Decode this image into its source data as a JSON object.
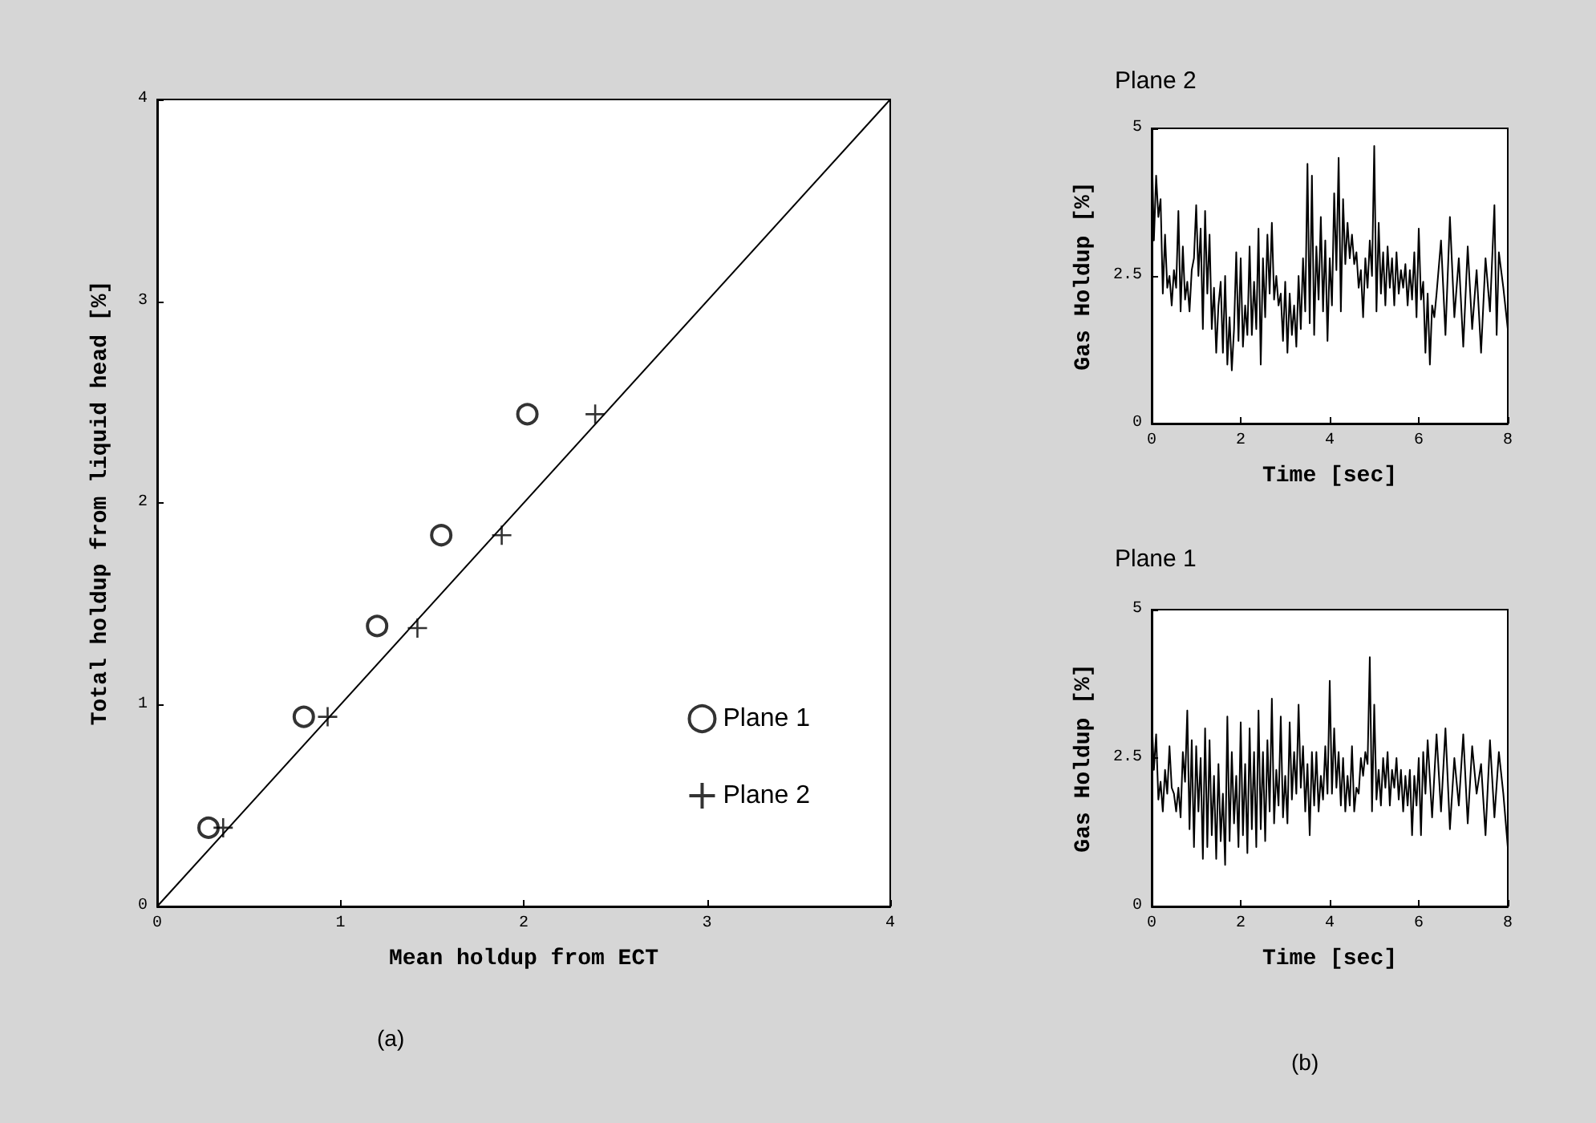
{
  "chart_data": [
    {
      "type": "scatter",
      "xlabel": "Mean holdup from ECT",
      "ylabel": "Total holdup from liquid head [%]",
      "xlim": [
        0,
        4
      ],
      "ylim": [
        0,
        4
      ],
      "xticks": [
        0,
        1,
        2,
        3,
        4
      ],
      "yticks": [
        0,
        1,
        2,
        3,
        4
      ],
      "grid": false,
      "legend": "bottom right",
      "annotations": [
        "(a)"
      ],
      "series": [
        {
          "name": "Plane 1",
          "color": "#000000",
          "marker": "circle",
          "x": [
            0.28,
            0.8,
            1.2,
            1.55,
            2.02
          ],
          "values": [
            0.39,
            0.94,
            1.39,
            1.84,
            2.44
          ]
        },
        {
          "name": "Plane 2",
          "color": "#000000",
          "marker": "cross",
          "x": [
            0.36,
            0.93,
            1.42,
            1.88,
            2.39
          ],
          "values": [
            0.39,
            0.94,
            1.38,
            1.84,
            2.44
          ]
        },
        {
          "type": "line",
          "color": "#000000",
          "marker": "none",
          "x": [
            0,
            4
          ],
          "values": [
            0,
            4
          ]
        }
      ]
    },
    {
      "type": "line",
      "title": "Plane 2",
      "xlabel": "Time [sec]",
      "ylabel": "Gas Holdup [%]",
      "xlim": [
        0,
        8
      ],
      "ylim": [
        0,
        5
      ],
      "xticks": [
        0,
        2,
        4,
        6,
        8
      ],
      "yticks": [
        0,
        2.5,
        5
      ],
      "grid": false,
      "marker": "none",
      "series": [
        {
          "color": "#000000",
          "x": [
            0,
            0.05,
            0.1,
            0.15,
            0.2,
            0.25,
            0.3,
            0.35,
            0.4,
            0.45,
            0.5,
            0.55,
            0.6,
            0.65,
            0.7,
            0.75,
            0.8,
            0.85,
            0.9,
            0.95,
            1.0,
            1.05,
            1.1,
            1.15,
            1.2,
            1.25,
            1.3,
            1.35,
            1.4,
            1.45,
            1.5,
            1.55,
            1.6,
            1.65,
            1.7,
            1.75,
            1.8,
            1.85,
            1.9,
            1.95,
            2.0,
            2.05,
            2.1,
            2.15,
            2.2,
            2.25,
            2.3,
            2.35,
            2.4,
            2.45,
            2.5,
            2.55,
            2.6,
            2.65,
            2.7,
            2.75,
            2.8,
            2.85,
            2.9,
            2.95,
            3.0,
            3.05,
            3.1,
            3.15,
            3.2,
            3.25,
            3.3,
            3.35,
            3.4,
            3.45,
            3.5,
            3.55,
            3.6,
            3.65,
            3.7,
            3.75,
            3.8,
            3.85,
            3.9,
            3.95,
            4.0,
            4.05,
            4.1,
            4.15,
            4.2,
            4.25,
            4.3,
            4.35,
            4.4,
            4.45,
            4.5,
            4.55,
            4.6,
            4.65,
            4.7,
            4.75,
            4.8,
            4.85,
            4.9,
            4.95,
            5.0,
            5.05,
            5.1,
            5.15,
            5.2,
            5.25,
            5.3,
            5.35,
            5.4,
            5.45,
            5.5,
            5.55,
            5.6,
            5.65,
            5.7,
            5.75,
            5.8,
            5.85,
            5.9,
            5.95,
            6.0,
            6.05,
            6.1,
            6.15,
            6.2,
            6.25,
            6.3,
            6.35,
            6.4,
            6.5,
            6.6,
            6.7,
            6.8,
            6.9,
            7.0,
            7.1,
            7.2,
            7.3,
            7.4,
            7.5,
            7.6,
            7.7,
            7.75,
            7.8,
            7.9,
            8.0
          ],
          "values": [
            4.8,
            3.1,
            4.2,
            3.5,
            3.8,
            2.2,
            3.2,
            2.3,
            2.5,
            2.0,
            2.6,
            2.3,
            3.6,
            1.9,
            3.0,
            2.1,
            2.4,
            1.9,
            2.6,
            2.8,
            3.7,
            2.5,
            3.3,
            1.6,
            3.6,
            2.2,
            3.2,
            1.6,
            2.3,
            1.2,
            2.0,
            2.4,
            1.2,
            2.5,
            1.0,
            1.8,
            0.9,
            1.6,
            2.9,
            1.4,
            2.8,
            1.3,
            2.0,
            1.5,
            3.0,
            1.5,
            2.4,
            1.6,
            3.3,
            1.0,
            2.8,
            1.8,
            3.2,
            2.2,
            3.4,
            2.1,
            2.5,
            2.0,
            2.2,
            1.4,
            2.4,
            1.2,
            2.2,
            1.5,
            2.0,
            1.3,
            2.5,
            1.6,
            2.8,
            1.9,
            4.4,
            1.7,
            4.2,
            1.5,
            3.0,
            2.1,
            3.5,
            1.9,
            3.1,
            1.4,
            2.8,
            2.0,
            3.9,
            2.6,
            4.5,
            1.9,
            3.8,
            2.7,
            3.4,
            2.8,
            3.2,
            2.7,
            2.9,
            2.3,
            2.6,
            1.8,
            2.8,
            2.3,
            3.1,
            2.5,
            4.7,
            1.9,
            3.4,
            2.2,
            2.9,
            2.0,
            3.0,
            2.3,
            2.8,
            2.0,
            2.9,
            2.2,
            2.6,
            2.3,
            2.7,
            2.0,
            2.6,
            2.1,
            2.9,
            1.8,
            3.3,
            2.1,
            2.4,
            1.2,
            2.2,
            1.0,
            2.0,
            1.8,
            2.2,
            3.1,
            1.5,
            3.5,
            1.8,
            2.8,
            1.3,
            3.0,
            1.6,
            2.6,
            1.2,
            2.8,
            1.9,
            3.7,
            1.5,
            2.9,
            2.3,
            1.6
          ]
        }
      ]
    },
    {
      "type": "line",
      "title": "Plane 1",
      "xlabel": "Time [sec]",
      "ylabel": "Gas Holdup [%]",
      "xlim": [
        0,
        8
      ],
      "ylim": [
        0,
        5
      ],
      "xticks": [
        0,
        2,
        4,
        6,
        8
      ],
      "yticks": [
        0,
        2.5,
        5
      ],
      "grid": false,
      "marker": "none",
      "annotations": [
        "(b)"
      ],
      "series": [
        {
          "color": "#000000",
          "x": [
            0,
            0.05,
            0.1,
            0.15,
            0.2,
            0.25,
            0.3,
            0.35,
            0.4,
            0.45,
            0.5,
            0.55,
            0.6,
            0.65,
            0.7,
            0.75,
            0.8,
            0.85,
            0.9,
            0.95,
            1.0,
            1.05,
            1.1,
            1.15,
            1.2,
            1.25,
            1.3,
            1.35,
            1.4,
            1.45,
            1.5,
            1.55,
            1.6,
            1.65,
            1.7,
            1.75,
            1.8,
            1.85,
            1.9,
            1.95,
            2.0,
            2.05,
            2.1,
            2.15,
            2.2,
            2.25,
            2.3,
            2.35,
            2.4,
            2.45,
            2.5,
            2.55,
            2.6,
            2.65,
            2.7,
            2.75,
            2.8,
            2.85,
            2.9,
            2.95,
            3.0,
            3.05,
            3.1,
            3.15,
            3.2,
            3.25,
            3.3,
            3.35,
            3.4,
            3.45,
            3.5,
            3.55,
            3.6,
            3.65,
            3.7,
            3.75,
            3.8,
            3.85,
            3.9,
            3.95,
            4.0,
            4.05,
            4.1,
            4.15,
            4.2,
            4.25,
            4.3,
            4.35,
            4.4,
            4.45,
            4.5,
            4.55,
            4.6,
            4.65,
            4.7,
            4.75,
            4.8,
            4.85,
            4.9,
            4.95,
            5.0,
            5.05,
            5.1,
            5.15,
            5.2,
            5.25,
            5.3,
            5.35,
            5.4,
            5.45,
            5.5,
            5.55,
            5.6,
            5.65,
            5.7,
            5.75,
            5.8,
            5.85,
            5.9,
            5.95,
            6.0,
            6.05,
            6.1,
            6.15,
            6.2,
            6.3,
            6.4,
            6.5,
            6.6,
            6.7,
            6.8,
            6.9,
            7.0,
            7.1,
            7.2,
            7.3,
            7.4,
            7.5,
            7.6,
            7.7,
            7.8,
            7.9,
            8.0
          ],
          "values": [
            3.2,
            2.3,
            2.9,
            1.8,
            2.1,
            1.6,
            2.3,
            1.9,
            2.7,
            2.0,
            1.9,
            1.6,
            2.0,
            1.5,
            2.6,
            2.1,
            3.3,
            1.3,
            2.8,
            1.0,
            2.7,
            1.6,
            2.5,
            0.8,
            3.0,
            1.0,
            2.8,
            1.2,
            2.2,
            0.8,
            2.4,
            1.1,
            1.9,
            0.7,
            3.2,
            1.1,
            2.6,
            1.4,
            2.2,
            1.0,
            3.1,
            1.2,
            2.4,
            0.9,
            3.0,
            1.3,
            2.6,
            1.0,
            3.3,
            1.3,
            2.6,
            1.1,
            2.8,
            1.6,
            3.5,
            1.4,
            2.3,
            1.7,
            3.2,
            1.5,
            2.2,
            1.4,
            3.1,
            1.8,
            2.6,
            1.9,
            3.4,
            2.0,
            2.7,
            1.6,
            2.4,
            1.2,
            2.6,
            1.7,
            2.6,
            1.6,
            2.2,
            1.8,
            2.7,
            1.9,
            3.8,
            1.9,
            3.0,
            2.0,
            2.6,
            1.7,
            2.5,
            1.6,
            2.2,
            1.7,
            2.7,
            1.6,
            2.0,
            1.9,
            2.5,
            2.2,
            2.6,
            2.4,
            4.2,
            1.6,
            3.4,
            1.8,
            2.3,
            1.7,
            2.5,
            2.0,
            2.6,
            1.7,
            2.3,
            2.0,
            2.5,
            1.8,
            2.3,
            1.6,
            2.2,
            1.7,
            2.3,
            1.2,
            2.2,
            1.7,
            2.5,
            1.2,
            2.6,
            1.9,
            2.8,
            1.5,
            2.9,
            1.6,
            3.0,
            1.3,
            2.5,
            1.7,
            2.9,
            1.4,
            2.7,
            1.9,
            2.4,
            1.2,
            2.8,
            1.5,
            2.6,
            1.9,
            1.0
          ]
        }
      ]
    }
  ]
}
